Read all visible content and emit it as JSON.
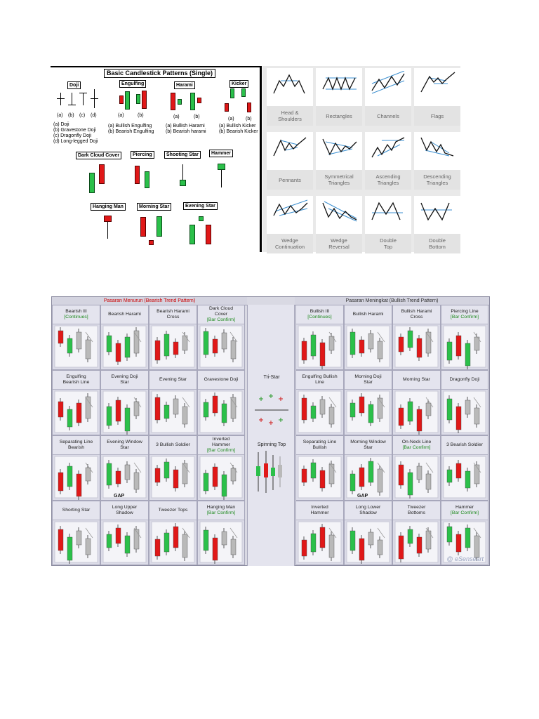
{
  "single": {
    "title": "Basic Candlestick Patterns (Single)",
    "doji": "Doji",
    "engulfing": "Engulfing",
    "harami": "Harami",
    "kicker": "Kicker",
    "dark_cloud": "Dark Cloud Cover",
    "piercing": "Piercing",
    "shooting_star": "Shooting Star",
    "hammer": "Hammer",
    "hanging_man": "Hanging Man",
    "morning_star": "Morning Star",
    "evening_star": "Evening Star",
    "abcd": [
      "(a)",
      "(b)",
      "(c)",
      "(d)"
    ],
    "ab": [
      "(a)",
      "(b)"
    ],
    "doji_desc": [
      "(a) Doji",
      "(b) Gravestone Doji",
      "(c) Dragonfly Doji",
      "(d) Long-legged Doji"
    ],
    "engulf_desc": [
      "(a) Bullish Engulfing",
      "(b) Bearish Engulfing"
    ],
    "harami_desc": [
      "(a) Bullish Harami",
      "(b) Bearish harami"
    ],
    "kicker_desc": [
      "(a) Bullish Kicker",
      "(b) Bearish Kicker"
    ]
  },
  "chart_patterns": [
    [
      "Head &",
      "Shoulders"
    ],
    [
      "Rectangles"
    ],
    [
      "Channels"
    ],
    [
      "Flags"
    ],
    [
      "Pennants"
    ],
    [
      "Symmetrical",
      "Triangles"
    ],
    [
      "Ascending",
      "Triangles"
    ],
    [
      "Descending",
      "Triangles"
    ],
    [
      "Wedge",
      "Continuation"
    ],
    [
      "Wedge",
      "Reversal"
    ],
    [
      "Double",
      "Top"
    ],
    [
      "Double",
      "Bottom"
    ]
  ],
  "trend": {
    "bearish_title": "Pasaran Menurun (Bearish Trend Pattern)",
    "bullish_title": "Pasaran Meningkat (Bullish Trend Pattern)",
    "tri_star": "Tri-Star",
    "spinning_top": "Spinning Top",
    "gap": "GAP",
    "watermark": "@ eSenseart",
    "bearish": [
      [
        "Bearish III",
        "[Continues]"
      ],
      [
        "Bearish Harami"
      ],
      [
        "Bearish Harami",
        "Cross"
      ],
      [
        "Dark Cloud",
        "Cover",
        "[Bar Confirm]"
      ],
      [
        "Engulfing",
        "Bearish Line"
      ],
      [
        "Evening Doji",
        "Star"
      ],
      [
        "Evening Star"
      ],
      [
        "Gravestone Doji"
      ],
      [
        "Separating Line",
        "Bearish"
      ],
      [
        "Evening Window",
        "Star"
      ],
      [
        "3 Bullish Soldier"
      ],
      [
        "Inverted",
        "Hammer",
        "[Bar Confirm]"
      ],
      [
        "Shorting Star"
      ],
      [
        "Long Upper",
        "Shadow"
      ],
      [
        "Tweezer Tops"
      ],
      [
        "Hanging Man",
        "[Bar Confirm]"
      ]
    ],
    "bullish": [
      [
        "Bullish III",
        "[Continues]"
      ],
      [
        "Bullish Harami"
      ],
      [
        "Bullish Harami",
        "Cross"
      ],
      [
        "Piercing Line",
        "[Bar Confirm]"
      ],
      [
        "Engulfing Bullish",
        "Line"
      ],
      [
        "Morning Doji",
        "Star"
      ],
      [
        "Morning Star"
      ],
      [
        "Dragonfly Doji"
      ],
      [
        "Separating Line",
        "Bullish"
      ],
      [
        "Morning Window",
        "Star"
      ],
      [
        "On-Neck Line",
        "[Bar Confirm]"
      ],
      [
        "3 Bearish Soldier"
      ],
      [
        "Inverted",
        "Hammer"
      ],
      [
        "Long Lower",
        "Shadow"
      ],
      [
        "Tweezer",
        "Bottoms"
      ],
      [
        "Hammer",
        "[Bar Confirm]"
      ]
    ]
  },
  "colors": {
    "bull": "#2bc04a",
    "bear": "#e01818",
    "gray": "#b9b9b9",
    "line": "#3b8fd0"
  }
}
